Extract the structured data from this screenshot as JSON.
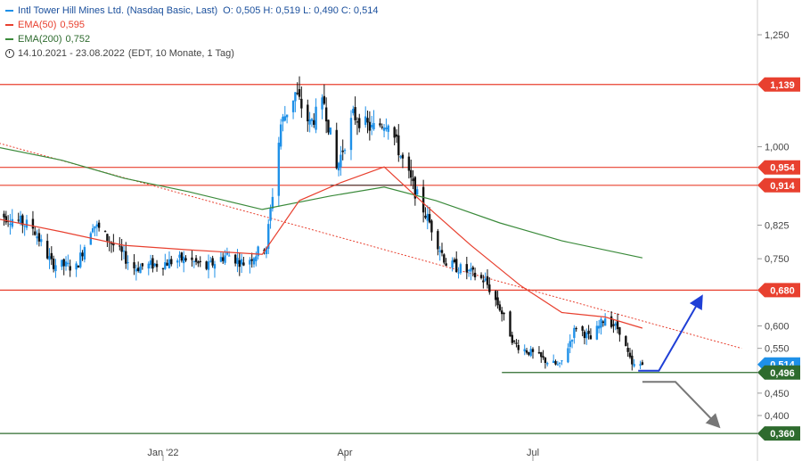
{
  "legend": {
    "instrument": "Intl Tower Hill Mines Ltd. (Nasdaq Basic, Last)",
    "ohlc": "O: 0,505  H: 0,519  L: 0,490  C: 0,514",
    "ema50_label": "EMA(50)",
    "ema50_value": "0,595",
    "ema200_label": "EMA(200)",
    "ema200_value": "0,752",
    "range": "14.10.2021 - 23.08.2022",
    "period": "(EDT, 10 Monate, 1 Tag)"
  },
  "colors": {
    "price_up": "#1e90e8",
    "price_down": "#111111",
    "ema50": "#e8402f",
    "ema200": "#3a8a3a",
    "support_red": "#e8402f",
    "support_green": "#2e6b2e",
    "trend_dotted": "#e8402f",
    "arrow_up": "#1f3fd6",
    "arrow_down": "#777777",
    "label_red": "#e8402f",
    "label_blue": "#1e90e8",
    "label_green": "#2e6b2e"
  },
  "chart_data": {
    "type": "candlestick",
    "x_range": [
      "2021-10-14",
      "2022-08-23"
    ],
    "y_range": [
      0.36,
      1.3
    ],
    "y_ticks": [
      "1,250",
      "1,000",
      "0,825",
      "0,750",
      "0,600",
      "0,550",
      "0,450",
      "0,400"
    ],
    "y_tick_values": [
      1.25,
      1.0,
      0.825,
      0.75,
      0.6,
      0.55,
      0.45,
      0.4
    ],
    "x_ticks": [
      {
        "label": "Jan '22",
        "date": "2022-01-03"
      },
      {
        "label": "Apr",
        "date": "2022-04-01"
      },
      {
        "label": "Jul",
        "date": "2022-07-01"
      }
    ],
    "levels": [
      {
        "label": "1,139",
        "value": 1.139,
        "color": "red"
      },
      {
        "label": "0,954",
        "value": 0.954,
        "color": "red"
      },
      {
        "label": "0,914",
        "value": 0.914,
        "color": "red"
      },
      {
        "label": "0,680",
        "value": 0.68,
        "color": "red"
      },
      {
        "label": "0,514",
        "value": 0.514,
        "color": "blue"
      },
      {
        "label": "0,496",
        "value": 0.496,
        "color": "green"
      },
      {
        "label": "0,360",
        "value": 0.36,
        "color": "green"
      }
    ],
    "ohlc_anchors": [
      [
        "2021-10-14",
        0.85
      ],
      [
        "2021-10-22",
        0.84
      ],
      [
        "2021-11-01",
        0.82
      ],
      [
        "2021-11-10",
        0.74
      ],
      [
        "2021-11-22",
        0.73
      ],
      [
        "2021-11-30",
        0.83
      ],
      [
        "2021-12-10",
        0.78
      ],
      [
        "2021-12-20",
        0.73
      ],
      [
        "2022-01-03",
        0.74
      ],
      [
        "2022-01-14",
        0.75
      ],
      [
        "2022-01-24",
        0.73
      ],
      [
        "2022-02-03",
        0.76
      ],
      [
        "2022-02-11",
        0.74
      ],
      [
        "2022-02-22",
        0.78
      ],
      [
        "2022-03-01",
        1.05
      ],
      [
        "2022-03-08",
        1.12
      ],
      [
        "2022-03-15",
        1.05
      ],
      [
        "2022-03-22",
        1.1
      ],
      [
        "2022-03-28",
        0.95
      ],
      [
        "2022-04-05",
        1.07
      ],
      [
        "2022-04-14",
        1.04
      ],
      [
        "2022-04-22",
        1.06
      ],
      [
        "2022-04-28",
        0.98
      ],
      [
        "2022-05-05",
        0.9
      ],
      [
        "2022-05-12",
        0.83
      ],
      [
        "2022-05-20",
        0.74
      ],
      [
        "2022-05-31",
        0.72
      ],
      [
        "2022-06-08",
        0.7
      ],
      [
        "2022-06-15",
        0.64
      ],
      [
        "2022-06-22",
        0.56
      ],
      [
        "2022-06-30",
        0.54
      ],
      [
        "2022-07-08",
        0.52
      ],
      [
        "2022-07-14",
        0.51
      ],
      [
        "2022-07-22",
        0.6
      ],
      [
        "2022-07-29",
        0.57
      ],
      [
        "2022-08-05",
        0.62
      ],
      [
        "2022-08-12",
        0.59
      ],
      [
        "2022-08-18",
        0.51
      ],
      [
        "2022-08-23",
        0.514
      ]
    ],
    "ema50": [
      [
        "2021-10-14",
        0.84
      ],
      [
        "2021-11-15",
        0.81
      ],
      [
        "2021-12-15",
        0.78
      ],
      [
        "2022-01-15",
        0.77
      ],
      [
        "2022-02-20",
        0.76
      ],
      [
        "2022-03-10",
        0.88
      ],
      [
        "2022-03-30",
        0.92
      ],
      [
        "2022-04-20",
        0.955
      ],
      [
        "2022-05-10",
        0.87
      ],
      [
        "2022-06-01",
        0.78
      ],
      [
        "2022-06-25",
        0.69
      ],
      [
        "2022-07-15",
        0.63
      ],
      [
        "2022-08-05",
        0.62
      ],
      [
        "2022-08-23",
        0.595
      ]
    ],
    "ema200": [
      [
        "2021-10-14",
        1.0
      ],
      [
        "2021-11-15",
        0.97
      ],
      [
        "2021-12-15",
        0.93
      ],
      [
        "2022-01-15",
        0.9
      ],
      [
        "2022-02-20",
        0.86
      ],
      [
        "2022-03-25",
        0.89
      ],
      [
        "2022-04-20",
        0.91
      ],
      [
        "2022-05-15",
        0.88
      ],
      [
        "2022-06-15",
        0.83
      ],
      [
        "2022-07-15",
        0.79
      ],
      [
        "2022-08-23",
        0.752
      ]
    ],
    "trendline_dotted": [
      [
        "2021-10-14",
        1.01
      ],
      [
        "2022-10-10",
        0.55
      ]
    ],
    "support_short": [
      [
        "2022-03-25",
        0.914
      ],
      [
        "2022-04-29",
        0.914
      ]
    ],
    "support_low": [
      [
        "2022-06-16",
        0.496
      ],
      [
        "2022-10-10",
        0.496
      ]
    ],
    "arrow_up": [
      [
        "2022-08-21",
        0.5
      ],
      [
        "2022-08-31",
        0.5
      ],
      [
        "2022-09-20",
        0.66
      ]
    ],
    "arrow_down": [
      [
        "2022-08-23",
        0.475
      ],
      [
        "2022-09-08",
        0.475
      ],
      [
        "2022-09-28",
        0.38
      ]
    ]
  }
}
